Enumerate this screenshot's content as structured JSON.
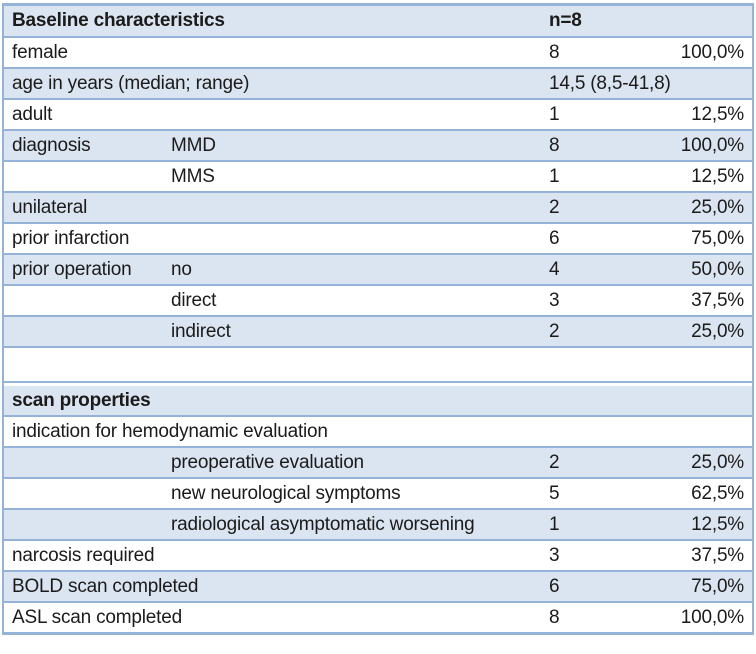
{
  "colors": {
    "band": "#DBE5F1",
    "border": "#95B3D7",
    "text": "#1B1B1B",
    "background": "#FFFFFF"
  },
  "table": {
    "title": "Baseline characteristics",
    "rows": [
      {
        "label": "Baseline characteristics",
        "value": "n=8"
      },
      {
        "label": "female",
        "count": "8",
        "percent": "100,0%"
      },
      {
        "label": "age in years (median; range)",
        "value": "14,5 (8,5-41,8)"
      },
      {
        "label": "adult",
        "count": "1",
        "percent": "12,5%"
      },
      {
        "label": "diagnosis",
        "sublabel": "MMD",
        "count": "8",
        "percent": "100,0%"
      },
      {
        "sublabel": "MMS",
        "count": "1",
        "percent": "12,5%"
      },
      {
        "label": "unilateral",
        "count": "2",
        "percent": "25,0%"
      },
      {
        "label": "prior infarction",
        "count": "6",
        "percent": "75,0%"
      },
      {
        "label": "prior operation",
        "sublabel": "no",
        "count": "4",
        "percent": "50,0%"
      },
      {
        "sublabel": "direct",
        "count": "3",
        "percent": "37,5%"
      },
      {
        "sublabel": "indirect",
        "count": "2",
        "percent": "25,0%"
      },
      {
        "label": ""
      },
      {
        "label": "scan properties"
      },
      {
        "label": "indication for hemodynamic evaluation"
      },
      {
        "sublabel": "preoperative evaluation",
        "count": "2",
        "percent": "25,0%"
      },
      {
        "sublabel": "new neurological symptoms",
        "count": "5",
        "percent": "62,5%"
      },
      {
        "sublabel": "radiological asymptomatic worsening",
        "count": "1",
        "percent": "12,5%"
      },
      {
        "label": "narcosis required",
        "count": "3",
        "percent": "37,5%"
      },
      {
        "label": "BOLD scan completed",
        "count": "6",
        "percent": "75,0%"
      },
      {
        "label": "ASL scan completed",
        "count": "8",
        "percent": "100,0%"
      }
    ]
  }
}
